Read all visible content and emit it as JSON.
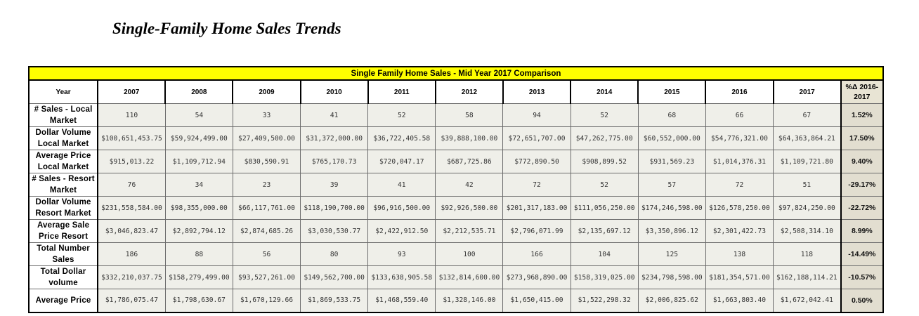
{
  "title": "Single-Family Home Sales Trends",
  "table": {
    "banner": "Single Family Home Sales -  Mid Year 2017 Comparison",
    "year_label": "Year",
    "years": [
      "2007",
      "2008",
      "2009",
      "2010",
      "2011",
      "2012",
      "2013",
      "2014",
      "2015",
      "2016",
      "2017"
    ],
    "pct_header": "%Δ 2016-2017",
    "rows": [
      {
        "label": "# Sales - Local Market",
        "values": [
          "110",
          "54",
          "33",
          "41",
          "52",
          "58",
          "94",
          "52",
          "68",
          "66",
          "67"
        ],
        "pct": "1.52%"
      },
      {
        "label": "Dollar Volume Local Market",
        "values": [
          "$100,651,453.75",
          "$59,924,499.00",
          "$27,409,500.00",
          "$31,372,000.00",
          "$36,722,405.58",
          "$39,888,100.00",
          "$72,651,707.00",
          "$47,262,775.00",
          "$60,552,000.00",
          "$54,776,321.00",
          "$64,363,864.21"
        ],
        "pct": "17.50%"
      },
      {
        "label": "Average Price Local Market",
        "values": [
          "$915,013.22",
          "$1,109,712.94",
          "$830,590.91",
          "$765,170.73",
          "$720,047.17",
          "$687,725.86",
          "$772,890.50",
          "$908,899.52",
          "$931,569.23",
          "$1,014,376.31",
          "$1,109,721.80"
        ],
        "pct": "9.40%"
      },
      {
        "label": "# Sales - Resort Market",
        "values": [
          "76",
          "34",
          "23",
          "39",
          "41",
          "42",
          "72",
          "52",
          "57",
          "72",
          "51"
        ],
        "pct": "-29.17%"
      },
      {
        "label": "Dollar Volume Resort Market",
        "values": [
          "$231,558,584.00",
          "$98,355,000.00",
          "$66,117,761.00",
          "$118,190,700.00",
          "$96,916,500.00",
          "$92,926,500.00",
          "$201,317,183.00",
          "$111,056,250.00",
          "$174,246,598.00",
          "$126,578,250.00",
          "$97,824,250.00"
        ],
        "pct": "-22.72%"
      },
      {
        "label": "Average Sale Price Resort",
        "values": [
          "$3,046,823.47",
          "$2,892,794.12",
          "$2,874,685.26",
          "$3,030,530.77",
          "$2,422,912.50",
          "$2,212,535.71",
          "$2,796,071.99",
          "$2,135,697.12",
          "$3,350,896.12",
          "$2,301,422.73",
          "$2,508,314.10"
        ],
        "pct": "8.99%"
      },
      {
        "label": "Total Number Sales",
        "values": [
          "186",
          "88",
          "56",
          "80",
          "93",
          "100",
          "166",
          "104",
          "125",
          "138",
          "118"
        ],
        "pct": "-14.49%"
      },
      {
        "label": "Total Dollar volume",
        "values": [
          "$332,210,037.75",
          "$158,279,499.00",
          "$93,527,261.00",
          "$149,562,700.00",
          "$133,638,905.58",
          "$132,814,600.00",
          "$273,968,890.00",
          "$158,319,025.00",
          "$234,798,598.00",
          "$181,354,571.00",
          "$162,188,114.21"
        ],
        "pct": "-10.57%"
      },
      {
        "label": "Average Price",
        "values": [
          "$1,786,075.47",
          "$1,798,630.67",
          "$1,670,129.66",
          "$1,869,533.75",
          "$1,468,559.40",
          "$1,328,146.00",
          "$1,650,415.00",
          "$1,522,298.32",
          "$2,006,825.62",
          "$1,663,803.40",
          "$1,672,042.41"
        ],
        "pct": "0.50%"
      }
    ]
  }
}
